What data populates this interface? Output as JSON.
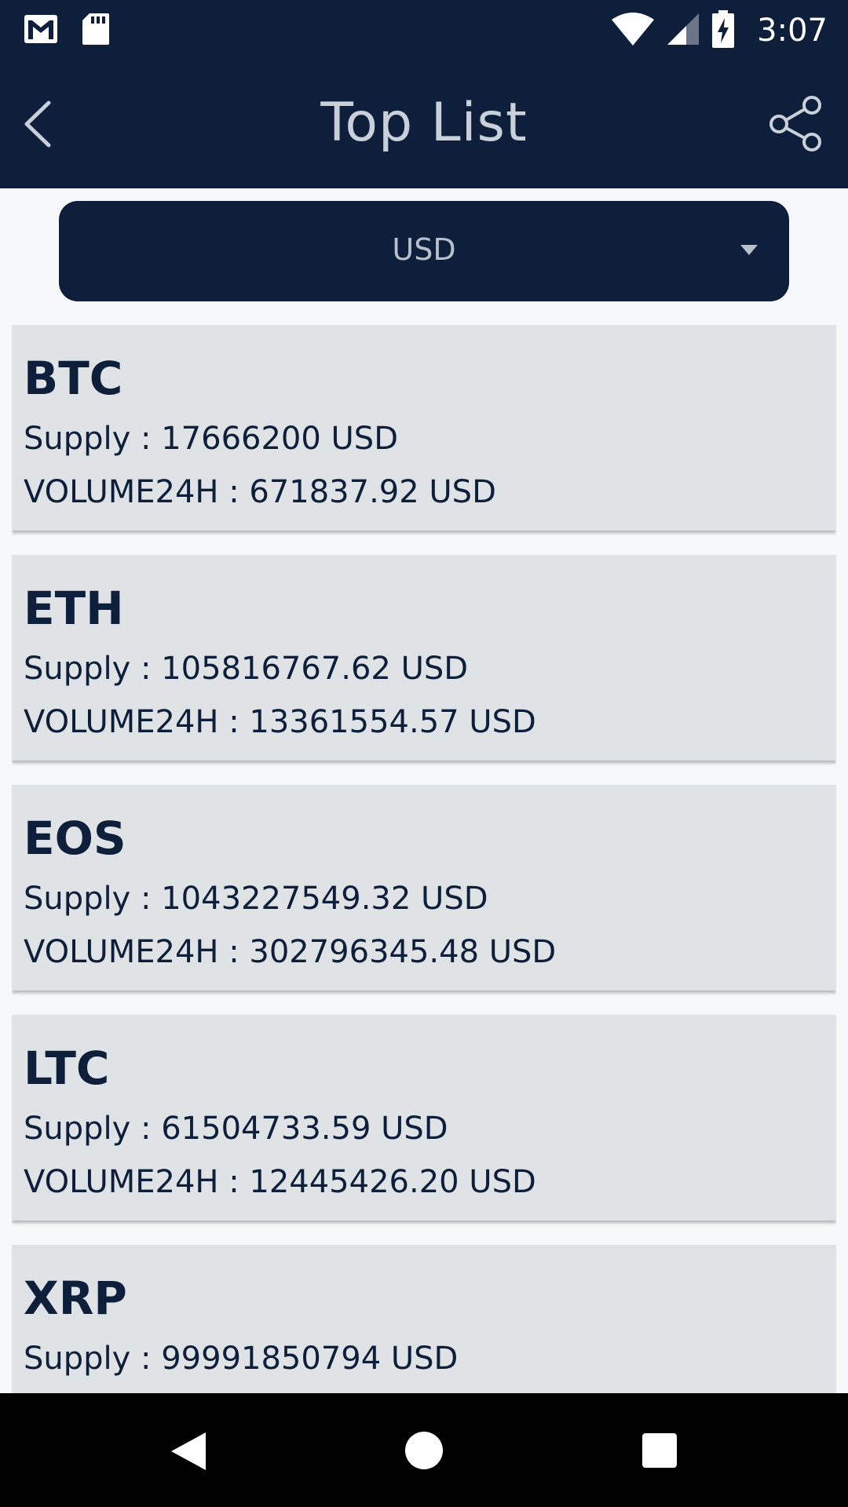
{
  "status_bar": {
    "time": "3:07",
    "icons": [
      "gmail-icon",
      "sd-card-icon",
      "wifi-icon",
      "signal-icon",
      "battery-charging-icon"
    ]
  },
  "app_bar": {
    "title": "Top List",
    "back_icon": "chevron-left-icon",
    "share_icon": "share-icon"
  },
  "currency_select": {
    "selected": "USD"
  },
  "coins": [
    {
      "symbol": "BTC",
      "supply": "Supply : 17666200 USD",
      "volume": "VOLUME24H : 671837.92 USD"
    },
    {
      "symbol": "ETH",
      "supply": "Supply : 105816767.62 USD",
      "volume": "VOLUME24H : 13361554.57 USD"
    },
    {
      "symbol": "EOS",
      "supply": "Supply : 1043227549.32 USD",
      "volume": "VOLUME24H : 302796345.48 USD"
    },
    {
      "symbol": "LTC",
      "supply": "Supply : 61504733.59 USD",
      "volume": "VOLUME24H : 12445426.20 USD"
    },
    {
      "symbol": "XRP",
      "supply": "Supply : 99991850794 USD",
      "volume": ""
    }
  ],
  "colors": {
    "primary": "#0d1f3a",
    "card": "#e0e3e6",
    "background": "#f7f8f9"
  }
}
